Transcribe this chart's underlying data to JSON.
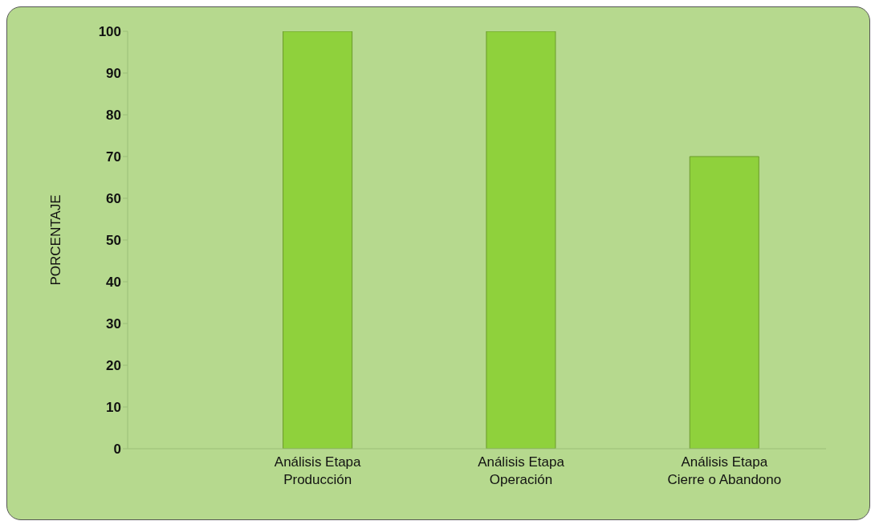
{
  "chart_data": {
    "type": "bar",
    "ylabel": "PORCENTAJE",
    "categories": [
      "Análisis Etapa\nProducción",
      "Análisis Etapa\nOperación",
      "Análisis Etapa\nCierre o Abandono"
    ],
    "values": [
      100,
      100,
      70
    ],
    "color": "#8fd13c",
    "ylim": [
      0,
      100
    ],
    "yticks": [
      0,
      10,
      20,
      30,
      40,
      50,
      60,
      70,
      80,
      90,
      100
    ],
    "grid": false
  }
}
